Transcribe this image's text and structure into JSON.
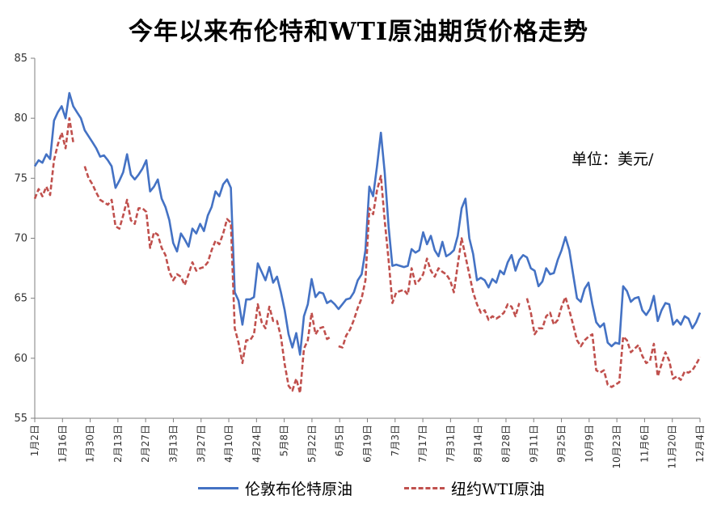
{
  "title": "今年以来布伦特和WTI原油期货价格走势",
  "unit_label": "单位：美元/",
  "chart_data": {
    "type": "line",
    "ylim": [
      55,
      85
    ],
    "yticks": [
      55,
      60,
      65,
      70,
      75,
      80,
      85
    ],
    "grid": false,
    "legend": "bottom",
    "x_tick_labels": [
      "1月2日",
      "1月16日",
      "1月30日",
      "2月13日",
      "2月27日",
      "3月13日",
      "3月27日",
      "4月10日",
      "4月24日",
      "5月8日",
      "5月22日",
      "6月5日",
      "6月19日",
      "7月3日",
      "7月17日",
      "7月31日",
      "8月14日",
      "8月28日",
      "9月11日",
      "9月25日",
      "10月9日",
      "10月23日",
      "11月6日",
      "11月20日",
      "12月4日"
    ],
    "series": [
      {
        "name": "伦敦布伦特原油",
        "color": "#4472c4",
        "style": "solid",
        "values": [
          76.0,
          76.5,
          76.3,
          77.0,
          76.6,
          79.8,
          80.5,
          81.0,
          80.0,
          82.1,
          81.0,
          80.5,
          80.0,
          79.0,
          78.5,
          78.0,
          77.5,
          76.8,
          76.9,
          76.5,
          76.0,
          74.2,
          74.8,
          75.5,
          77.0,
          75.3,
          74.9,
          75.3,
          75.8,
          76.5,
          73.9,
          74.3,
          74.9,
          73.3,
          72.6,
          71.5,
          69.6,
          68.9,
          70.4,
          69.9,
          69.3,
          70.8,
          70.4,
          71.2,
          70.6,
          71.9,
          72.6,
          73.9,
          73.5,
          74.5,
          74.9,
          74.2,
          65.5,
          64.8,
          62.8,
          64.9,
          64.9,
          65.1,
          67.9,
          67.2,
          66.5,
          67.6,
          66.3,
          66.8,
          65.5,
          64.0,
          62.0,
          60.9,
          62.1,
          60.3,
          63.5,
          64.5,
          66.6,
          65.1,
          65.5,
          65.4,
          64.6,
          64.8,
          64.5,
          64.1,
          64.5,
          64.9,
          65.0,
          65.5,
          66.5,
          67.0,
          69.0,
          74.3,
          73.5,
          76.0,
          78.8,
          75.5,
          71.0,
          67.7,
          67.8,
          67.7,
          67.6,
          67.7,
          69.1,
          68.8,
          69.0,
          70.5,
          69.5,
          70.2,
          69.0,
          68.5,
          69.7,
          68.5,
          68.7,
          69.0,
          70.2,
          72.5,
          73.3,
          70.0,
          68.7,
          66.5,
          66.7,
          66.5,
          65.9,
          66.6,
          66.3,
          67.3,
          67.0,
          68.0,
          68.6,
          67.3,
          68.2,
          68.6,
          68.4,
          67.5,
          67.3,
          66.0,
          66.4,
          67.5,
          67.0,
          67.1,
          68.2,
          69.0,
          70.1,
          69.0,
          67.0,
          65.0,
          64.7,
          65.8,
          66.3,
          64.5,
          63.0,
          62.6,
          62.9,
          61.3,
          61.0,
          61.3,
          61.2,
          66.0,
          65.6,
          64.7,
          65.0,
          65.1,
          64.0,
          63.6,
          64.1,
          65.2,
          63.1,
          64.0,
          64.6,
          64.5,
          62.8,
          63.2,
          62.8,
          63.5,
          63.3,
          62.5,
          63.0,
          63.8
        ]
      },
      {
        "name": "纽约WTI原油",
        "color": "#c0504d",
        "style": "dashed",
        "values": [
          73.3,
          74.1,
          73.5,
          74.3,
          73.6,
          76.5,
          77.8,
          78.8,
          77.5,
          80.0,
          78.0,
          null,
          null,
          76.0,
          75.0,
          74.5,
          73.8,
          73.2,
          73.0,
          72.8,
          73.2,
          71.0,
          70.8,
          71.9,
          73.2,
          71.5,
          71.2,
          72.5,
          72.5,
          72.2,
          69.2,
          70.5,
          70.3,
          69.2,
          68.6,
          67.2,
          66.5,
          67.0,
          66.8,
          66.1,
          67.0,
          68.0,
          67.3,
          67.5,
          67.6,
          68.0,
          69.0,
          69.8,
          69.5,
          70.4,
          71.6,
          71.3,
          62.5,
          61.3,
          59.6,
          61.5,
          61.5,
          62.0,
          64.5,
          63.0,
          62.5,
          64.3,
          63.1,
          63.1,
          61.8,
          59.5,
          57.7,
          57.3,
          58.3,
          57.1,
          60.8,
          61.5,
          63.8,
          62.0,
          62.5,
          62.6,
          61.6,
          61.8,
          null,
          61.0,
          60.9,
          61.9,
          62.4,
          63.2,
          64.2,
          65.0,
          66.5,
          72.5,
          72.0,
          74.0,
          75.2,
          71.5,
          68.2,
          64.6,
          65.5,
          65.6,
          65.7,
          65.3,
          67.5,
          66.2,
          66.5,
          67.0,
          68.3,
          67.3,
          66.8,
          67.5,
          67.2,
          67.0,
          66.5,
          65.5,
          67.8,
          70.0,
          68.5,
          67.0,
          65.5,
          64.5,
          63.8,
          64.0,
          63.2,
          63.5,
          63.3,
          63.5,
          63.8,
          64.5,
          64.3,
          63.5,
          64.6,
          null,
          65.0,
          63.8,
          62.0,
          62.5,
          62.5,
          63.5,
          63.8,
          62.8,
          63.2,
          64.3,
          65.1,
          64.0,
          62.8,
          61.5,
          61.0,
          61.5,
          61.8,
          62.0,
          59.0,
          58.8,
          59.0,
          57.8,
          57.6,
          57.8,
          58.0,
          61.8,
          61.5,
          60.5,
          60.8,
          61.1,
          60.2,
          59.6,
          59.8,
          61.2,
          58.5,
          59.5,
          60.5,
          59.8,
          58.3,
          58.5,
          58.2,
          58.9,
          58.8,
          59.0,
          59.5,
          60.1
        ]
      }
    ]
  }
}
